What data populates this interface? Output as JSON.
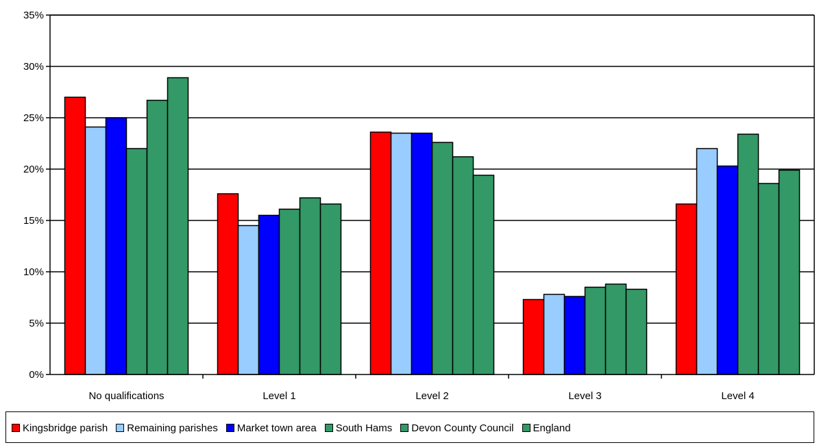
{
  "chart_data": {
    "type": "bar",
    "title": "",
    "xlabel": "",
    "ylabel": "",
    "categories": [
      "No qualifications",
      "Level 1",
      "Level 2",
      "Level 3",
      "Level 4"
    ],
    "y_ticks": [
      "0%",
      "5%",
      "10%",
      "15%",
      "20%",
      "25%",
      "30%",
      "35%"
    ],
    "ylim": [
      0,
      35
    ],
    "y_unit": "%",
    "grid": true,
    "legend_position": "bottom",
    "series": [
      {
        "name": "Kingsbridge parish",
        "color": "#ff0000",
        "values": [
          27.0,
          17.6,
          23.6,
          7.3,
          16.6
        ]
      },
      {
        "name": "Remaining parishes",
        "color": "#99ccff",
        "values": [
          24.1,
          14.5,
          23.5,
          7.8,
          22.0
        ]
      },
      {
        "name": "Market town area",
        "color": "#0000ff",
        "values": [
          25.0,
          15.5,
          23.5,
          7.6,
          20.3
        ]
      },
      {
        "name": "South Hams",
        "color": "#339966",
        "values": [
          22.0,
          16.1,
          22.6,
          8.5,
          23.4
        ]
      },
      {
        "name": "Devon County Council",
        "color": "#339966",
        "values": [
          26.7,
          17.2,
          21.2,
          8.8,
          18.6
        ]
      },
      {
        "name": "England",
        "color": "#339966",
        "values": [
          28.9,
          16.6,
          19.4,
          8.3,
          19.9
        ]
      }
    ]
  }
}
